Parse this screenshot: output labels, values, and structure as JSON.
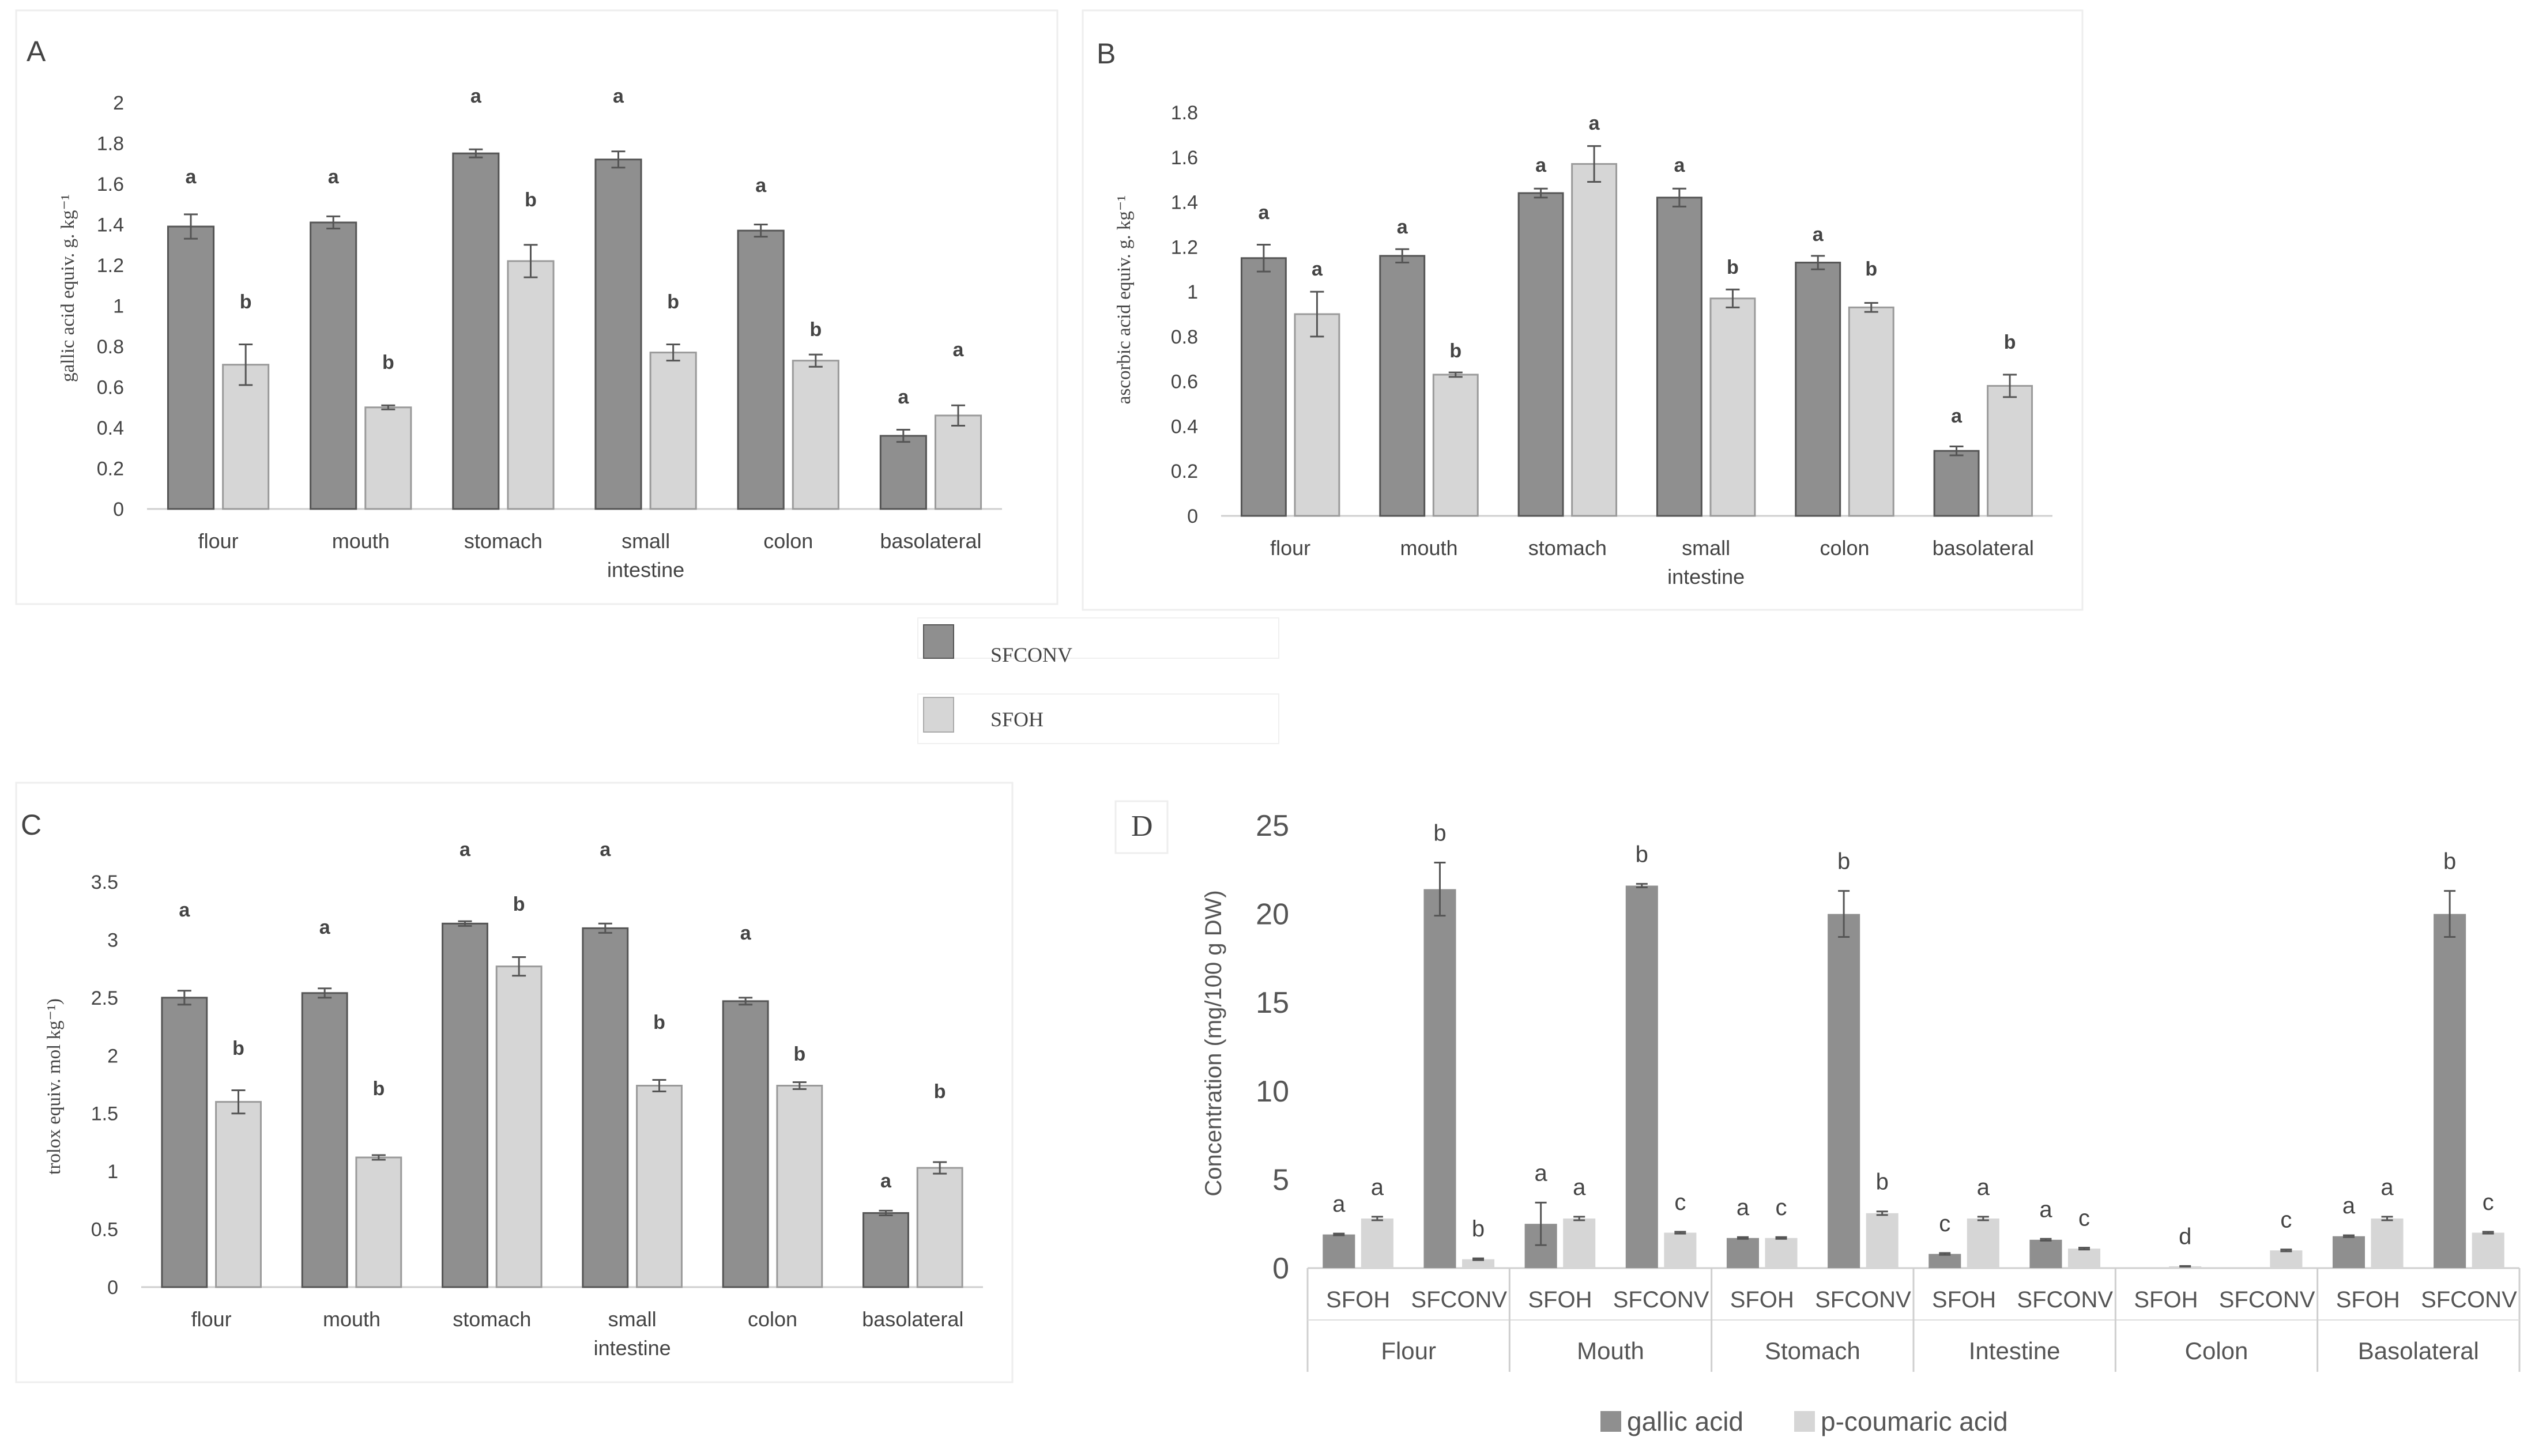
{
  "legend_top": {
    "items": [
      "SFCONV",
      "SFOH"
    ],
    "colors": [
      "#8f8f8f",
      "#d6d6d6"
    ]
  },
  "chart_data": [
    {
      "panel": "A",
      "type": "bar",
      "ylabel": "gallic acid equiv. g. kg⁻¹",
      "ylim": [
        0,
        2
      ],
      "yticks": [
        0,
        0.2,
        0.4,
        0.6,
        0.8,
        1,
        1.2,
        1.4,
        1.6,
        1.8,
        2
      ],
      "categories": [
        "flour",
        "mouth",
        "stomach",
        "small\nintestine",
        "colon",
        "basolateral"
      ],
      "series": [
        {
          "name": "SFCONV",
          "color": "#8f8f8f",
          "values": [
            1.39,
            1.41,
            1.75,
            1.72,
            1.37,
            0.36
          ],
          "errors": [
            0.06,
            0.03,
            0.02,
            0.04,
            0.03,
            0.03
          ],
          "letters": [
            "a",
            "a",
            "a",
            "a",
            "a",
            "a"
          ]
        },
        {
          "name": "SFOH",
          "color": "#d6d6d6",
          "values": [
            0.71,
            0.5,
            1.22,
            0.77,
            0.73,
            0.46
          ],
          "errors": [
            0.1,
            0.01,
            0.08,
            0.04,
            0.03,
            0.05
          ],
          "letters": [
            "b",
            "b",
            "b",
            "b",
            "b",
            "a"
          ]
        }
      ]
    },
    {
      "panel": "B",
      "type": "bar",
      "ylabel": "ascorbic acid equiv. g. kg⁻¹",
      "ylim": [
        0,
        1.8
      ],
      "yticks": [
        0,
        0.2,
        0.4,
        0.6,
        0.8,
        1,
        1.2,
        1.4,
        1.6,
        1.8
      ],
      "categories": [
        "flour",
        "mouth",
        "stomach",
        "small\nintestine",
        "colon",
        "basolateral"
      ],
      "series": [
        {
          "name": "SFCONV",
          "color": "#8f8f8f",
          "values": [
            1.15,
            1.16,
            1.44,
            1.42,
            1.13,
            0.29
          ],
          "errors": [
            0.06,
            0.03,
            0.02,
            0.04,
            0.03,
            0.02
          ],
          "letters": [
            "a",
            "a",
            "a",
            "a",
            "a",
            "a"
          ]
        },
        {
          "name": "SFOH",
          "color": "#d6d6d6",
          "values": [
            0.9,
            0.63,
            1.57,
            0.97,
            0.93,
            0.58
          ],
          "errors": [
            0.1,
            0.01,
            0.08,
            0.04,
            0.02,
            0.05
          ],
          "letters": [
            "a",
            "b",
            "a",
            "b",
            "b",
            "b"
          ]
        }
      ]
    },
    {
      "panel": "C",
      "type": "bar",
      "ylabel": "trolox equiv. mol kg⁻¹)",
      "ylim": [
        0,
        3.5
      ],
      "yticks": [
        0,
        0.5,
        1,
        1.5,
        2,
        2.5,
        3,
        3.5
      ],
      "categories": [
        "flour",
        "mouth",
        "stomach",
        "small\nintestine",
        "colon",
        "basolateral"
      ],
      "series": [
        {
          "name": "SFCONV",
          "color": "#8f8f8f",
          "values": [
            2.5,
            2.54,
            3.14,
            3.1,
            2.47,
            0.64
          ],
          "errors": [
            0.06,
            0.04,
            0.02,
            0.04,
            0.03,
            0.02
          ],
          "letters": [
            "a",
            "a",
            "a",
            "a",
            "a",
            "a"
          ]
        },
        {
          "name": "SFOH",
          "color": "#d6d6d6",
          "values": [
            1.6,
            1.12,
            2.77,
            1.74,
            1.74,
            1.03
          ],
          "errors": [
            0.1,
            0.02,
            0.08,
            0.05,
            0.03,
            0.05
          ],
          "letters": [
            "b",
            "b",
            "b",
            "b",
            "b",
            "b"
          ]
        }
      ]
    },
    {
      "panel": "D",
      "type": "bar",
      "ylabel": "Concentration (mg/100 g DW)",
      "ylim": [
        0,
        25
      ],
      "yticks": [
        0,
        5,
        10,
        15,
        20,
        25
      ],
      "groups": [
        "Flour",
        "Mouth",
        "Stomach",
        "Intestine",
        "Colon",
        "Basolateral"
      ],
      "subcategories": [
        "SFOH",
        "SFCONV"
      ],
      "series": [
        {
          "name": "gallic acid",
          "color": "#8f8f8f",
          "values": [
            1.9,
            21.4,
            2.5,
            21.6,
            1.7,
            20.0,
            0.8,
            1.6,
            0,
            0,
            1.8,
            20.0
          ],
          "errors": [
            0.05,
            1.5,
            1.2,
            0.1,
            0.05,
            1.3,
            0.05,
            0.05,
            0,
            0,
            0.05,
            1.3
          ],
          "letters": [
            "a",
            "b",
            "a",
            "b",
            "a",
            "b",
            "c",
            "a",
            "",
            "",
            "a",
            "b"
          ]
        },
        {
          "name": "p-coumaric acid",
          "color": "#d6d6d6",
          "values": [
            2.8,
            0.5,
            2.8,
            2.0,
            1.7,
            3.1,
            2.8,
            1.1,
            0.1,
            1.0,
            2.8,
            2.0
          ],
          "errors": [
            0.1,
            0.05,
            0.1,
            0.05,
            0.05,
            0.1,
            0.1,
            0.05,
            0.02,
            0.05,
            0.1,
            0.05
          ],
          "letters": [
            "a",
            "b",
            "a",
            "c",
            "c",
            "b",
            "a",
            "c",
            "d",
            "c",
            "a",
            "c"
          ]
        }
      ]
    }
  ]
}
